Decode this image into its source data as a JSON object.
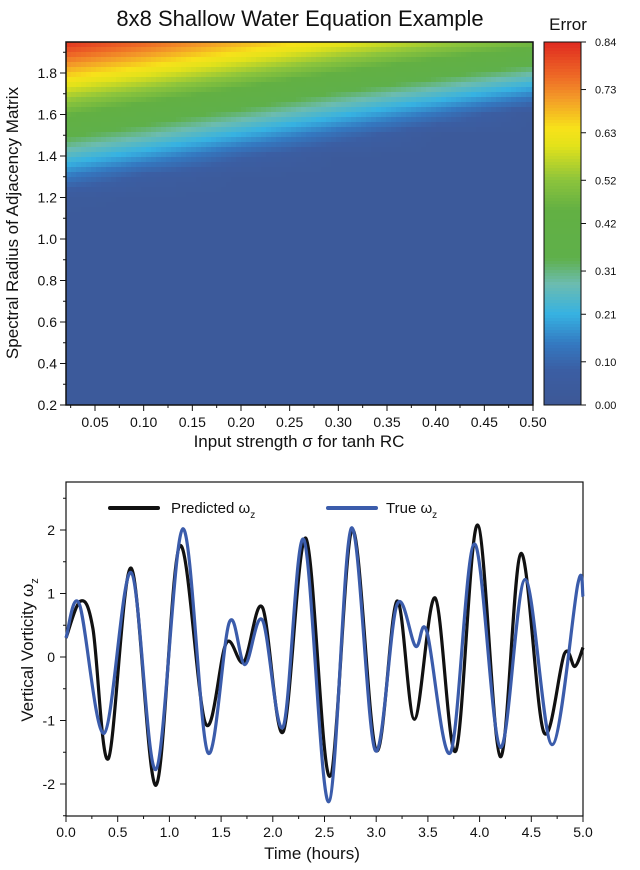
{
  "chart_data": [
    {
      "type": "heatmap",
      "title": "8x8 Shallow Water Equation Example",
      "xlabel": "Input strength σ for tanh RC",
      "ylabel": "Spectral Radius of Adjacency Matrix",
      "xlim": [
        0.02,
        0.5
      ],
      "ylim": [
        0.2,
        1.95
      ],
      "xticks": [
        "0.05",
        "0.10",
        "0.15",
        "0.20",
        "0.25",
        "0.30",
        "0.35",
        "0.40",
        "0.45",
        "0.50"
      ],
      "yticks": [
        "0.2",
        "0.4",
        "0.6",
        "0.8",
        "1.0",
        "1.2",
        "1.4",
        "1.6",
        "1.8"
      ],
      "colorbar": {
        "label": "Error",
        "range": [
          0,
          0.84
        ],
        "ticks": [
          "0.00",
          "0.10",
          "0.21",
          "0.31",
          "0.42",
          "0.52",
          "0.63",
          "0.73",
          "0.84"
        ],
        "colors": [
          {
            "v": 0.0,
            "c": "#3d5896"
          },
          {
            "v": 0.08,
            "c": "#3b5ea3"
          },
          {
            "v": 0.14,
            "c": "#3478c0"
          },
          {
            "v": 0.21,
            "c": "#36b2e2"
          },
          {
            "v": 0.28,
            "c": "#6cbcb0"
          },
          {
            "v": 0.34,
            "c": "#5fb04a"
          },
          {
            "v": 0.45,
            "c": "#62b043"
          },
          {
            "v": 0.52,
            "c": "#8cc43c"
          },
          {
            "v": 0.6,
            "c": "#e3e21a"
          },
          {
            "v": 0.64,
            "c": "#f7e21a"
          },
          {
            "v": 0.71,
            "c": "#f39a28"
          },
          {
            "v": 0.76,
            "c": "#ee6a26"
          },
          {
            "v": 0.84,
            "c": "#e02a20"
          }
        ]
      },
      "x": [
        0.02,
        0.1,
        0.2,
        0.3,
        0.4,
        0.5
      ],
      "y": [
        0.2,
        1.0,
        1.1,
        1.2,
        1.3,
        1.4,
        1.5,
        1.6,
        1.7,
        1.8,
        1.9,
        1.96
      ],
      "z": [
        [
          0.03,
          0.03,
          0.03,
          0.03,
          0.03,
          0.03
        ],
        [
          0.03,
          0.03,
          0.03,
          0.03,
          0.03,
          0.03
        ],
        [
          0.03,
          0.03,
          0.03,
          0.03,
          0.03,
          0.03
        ],
        [
          0.04,
          0.03,
          0.03,
          0.03,
          0.03,
          0.03
        ],
        [
          0.14,
          0.07,
          0.03,
          0.03,
          0.03,
          0.03
        ],
        [
          0.25,
          0.18,
          0.09,
          0.03,
          0.03,
          0.03
        ],
        [
          0.35,
          0.29,
          0.2,
          0.11,
          0.03,
          0.03
        ],
        [
          0.46,
          0.39,
          0.31,
          0.22,
          0.13,
          0.03
        ],
        [
          0.56,
          0.5,
          0.42,
          0.33,
          0.25,
          0.16
        ],
        [
          0.67,
          0.61,
          0.53,
          0.45,
          0.37,
          0.29
        ],
        [
          0.78,
          0.72,
          0.64,
          0.56,
          0.49,
          0.42
        ],
        [
          0.84,
          0.78,
          0.7,
          0.63,
          0.56,
          0.5
        ]
      ]
    },
    {
      "type": "line",
      "title": "",
      "xlabel": "Time (hours)",
      "ylabel": "Vertical Vorticity ω",
      "ylabel_sub": "z",
      "xlim": [
        0,
        5
      ],
      "ylim": [
        -2.5,
        2.76
      ],
      "xticks": [
        "0.0",
        "0.5",
        "1.0",
        "1.5",
        "2.0",
        "2.5",
        "3.0",
        "3.5",
        "4.0",
        "4.5",
        "5.0"
      ],
      "yticks": [
        "-2",
        "-1",
        "0",
        "1",
        "2"
      ],
      "legend_position": "top",
      "series": [
        {
          "name": "Predicted ω",
          "name_sub": "z",
          "color": "#111111",
          "x": [
            0,
            0.14,
            0.26,
            0.41,
            0.63,
            0.87,
            1.1,
            1.35,
            1.55,
            1.72,
            1.9,
            2.1,
            2.32,
            2.55,
            2.77,
            3.0,
            3.2,
            3.37,
            3.57,
            3.77,
            3.98,
            4.2,
            4.4,
            4.62,
            4.82,
            4.92,
            5.0
          ],
          "y": [
            0.3,
            0.88,
            0.45,
            -1.6,
            1.4,
            -2.02,
            1.75,
            -1.05,
            0.22,
            -0.08,
            0.78,
            -1.18,
            1.87,
            -1.88,
            2.0,
            -1.47,
            0.88,
            -0.98,
            0.93,
            -1.48,
            2.08,
            -1.57,
            1.63,
            -1.18,
            0.05,
            -0.15,
            0.15
          ]
        },
        {
          "name": "True ω",
          "name_sub": "z",
          "color": "#3b5cab",
          "x": [
            0,
            0.13,
            0.37,
            0.63,
            0.87,
            1.13,
            1.37,
            1.58,
            1.73,
            1.9,
            2.1,
            2.3,
            2.54,
            2.76,
            2.99,
            3.2,
            3.38,
            3.49,
            3.72,
            3.95,
            4.2,
            4.44,
            4.7,
            4.95,
            5.0
          ],
          "y": [
            0.3,
            0.83,
            -1.2,
            1.33,
            -1.77,
            2.02,
            -1.5,
            0.55,
            -0.12,
            0.58,
            -1.1,
            1.85,
            -2.28,
            2.03,
            -1.47,
            0.82,
            0.17,
            0.4,
            -1.5,
            1.78,
            -1.42,
            1.22,
            -1.38,
            1.15,
            0.95
          ]
        }
      ]
    }
  ]
}
